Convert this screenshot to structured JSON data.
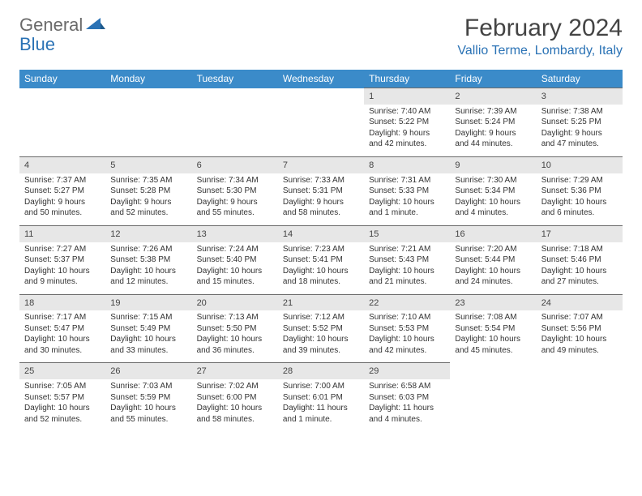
{
  "logo": {
    "text1": "General",
    "text2": "Blue"
  },
  "title": "February 2024",
  "location": "Vallio Terme, Lombardy, Italy",
  "colors": {
    "header_bg": "#3b8bc9",
    "header_text": "#ffffff",
    "daynum_bg": "#e7e7e7",
    "daynum_border": "#6a6a6a",
    "accent": "#2a72b5",
    "logo_gray": "#6a6a6a",
    "body_text": "#333333"
  },
  "weekdays": [
    "Sunday",
    "Monday",
    "Tuesday",
    "Wednesday",
    "Thursday",
    "Friday",
    "Saturday"
  ],
  "weeks": [
    [
      null,
      null,
      null,
      null,
      {
        "d": "1",
        "sr": "7:40 AM",
        "ss": "5:22 PM",
        "dl": "9 hours and 42 minutes."
      },
      {
        "d": "2",
        "sr": "7:39 AM",
        "ss": "5:24 PM",
        "dl": "9 hours and 44 minutes."
      },
      {
        "d": "3",
        "sr": "7:38 AM",
        "ss": "5:25 PM",
        "dl": "9 hours and 47 minutes."
      }
    ],
    [
      {
        "d": "4",
        "sr": "7:37 AM",
        "ss": "5:27 PM",
        "dl": "9 hours and 50 minutes."
      },
      {
        "d": "5",
        "sr": "7:35 AM",
        "ss": "5:28 PM",
        "dl": "9 hours and 52 minutes."
      },
      {
        "d": "6",
        "sr": "7:34 AM",
        "ss": "5:30 PM",
        "dl": "9 hours and 55 minutes."
      },
      {
        "d": "7",
        "sr": "7:33 AM",
        "ss": "5:31 PM",
        "dl": "9 hours and 58 minutes."
      },
      {
        "d": "8",
        "sr": "7:31 AM",
        "ss": "5:33 PM",
        "dl": "10 hours and 1 minute."
      },
      {
        "d": "9",
        "sr": "7:30 AM",
        "ss": "5:34 PM",
        "dl": "10 hours and 4 minutes."
      },
      {
        "d": "10",
        "sr": "7:29 AM",
        "ss": "5:36 PM",
        "dl": "10 hours and 6 minutes."
      }
    ],
    [
      {
        "d": "11",
        "sr": "7:27 AM",
        "ss": "5:37 PM",
        "dl": "10 hours and 9 minutes."
      },
      {
        "d": "12",
        "sr": "7:26 AM",
        "ss": "5:38 PM",
        "dl": "10 hours and 12 minutes."
      },
      {
        "d": "13",
        "sr": "7:24 AM",
        "ss": "5:40 PM",
        "dl": "10 hours and 15 minutes."
      },
      {
        "d": "14",
        "sr": "7:23 AM",
        "ss": "5:41 PM",
        "dl": "10 hours and 18 minutes."
      },
      {
        "d": "15",
        "sr": "7:21 AM",
        "ss": "5:43 PM",
        "dl": "10 hours and 21 minutes."
      },
      {
        "d": "16",
        "sr": "7:20 AM",
        "ss": "5:44 PM",
        "dl": "10 hours and 24 minutes."
      },
      {
        "d": "17",
        "sr": "7:18 AM",
        "ss": "5:46 PM",
        "dl": "10 hours and 27 minutes."
      }
    ],
    [
      {
        "d": "18",
        "sr": "7:17 AM",
        "ss": "5:47 PM",
        "dl": "10 hours and 30 minutes."
      },
      {
        "d": "19",
        "sr": "7:15 AM",
        "ss": "5:49 PM",
        "dl": "10 hours and 33 minutes."
      },
      {
        "d": "20",
        "sr": "7:13 AM",
        "ss": "5:50 PM",
        "dl": "10 hours and 36 minutes."
      },
      {
        "d": "21",
        "sr": "7:12 AM",
        "ss": "5:52 PM",
        "dl": "10 hours and 39 minutes."
      },
      {
        "d": "22",
        "sr": "7:10 AM",
        "ss": "5:53 PM",
        "dl": "10 hours and 42 minutes."
      },
      {
        "d": "23",
        "sr": "7:08 AM",
        "ss": "5:54 PM",
        "dl": "10 hours and 45 minutes."
      },
      {
        "d": "24",
        "sr": "7:07 AM",
        "ss": "5:56 PM",
        "dl": "10 hours and 49 minutes."
      }
    ],
    [
      {
        "d": "25",
        "sr": "7:05 AM",
        "ss": "5:57 PM",
        "dl": "10 hours and 52 minutes."
      },
      {
        "d": "26",
        "sr": "7:03 AM",
        "ss": "5:59 PM",
        "dl": "10 hours and 55 minutes."
      },
      {
        "d": "27",
        "sr": "7:02 AM",
        "ss": "6:00 PM",
        "dl": "10 hours and 58 minutes."
      },
      {
        "d": "28",
        "sr": "7:00 AM",
        "ss": "6:01 PM",
        "dl": "11 hours and 1 minute."
      },
      {
        "d": "29",
        "sr": "6:58 AM",
        "ss": "6:03 PM",
        "dl": "11 hours and 4 minutes."
      },
      null,
      null
    ]
  ],
  "labels": {
    "sunrise": "Sunrise:",
    "sunset": "Sunset:",
    "daylight": "Daylight:"
  }
}
